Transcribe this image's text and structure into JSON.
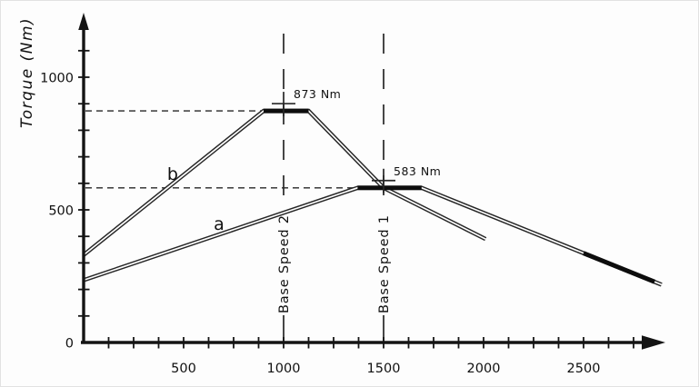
{
  "colors": {
    "background": "#fdfdfd",
    "line": "#262626",
    "axis": "#141414",
    "thick": "#0d0d0d",
    "text": "#111111"
  },
  "chart_data": {
    "type": "line",
    "title": "",
    "xlabel": "",
    "ylabel": "Torque (Nm)",
    "xlim": [
      0,
      2900
    ],
    "ylim": [
      0,
      1200
    ],
    "grid": false,
    "legend": "inline curve labels",
    "x_ticks_labeled": [
      500,
      1000,
      1500,
      2000,
      2500
    ],
    "x_minor_tick_step": 125,
    "y_ticks_labeled": [
      0,
      500,
      1000
    ],
    "y_minor_tick_step": 100,
    "series": [
      {
        "name": "a",
        "points": [
          [
            0,
            235
          ],
          [
            1370,
            583
          ],
          [
            1690,
            583
          ],
          [
            2890,
            218
          ]
        ],
        "thick_segments": [
          [
            1370,
            1690
          ],
          [
            2500,
            2855
          ]
        ]
      },
      {
        "name": "b",
        "points": [
          [
            0,
            330
          ],
          [
            900,
            873
          ],
          [
            1125,
            873
          ],
          [
            1500,
            583
          ],
          [
            2010,
            390
          ]
        ],
        "thick_segments": [
          [
            900,
            1125
          ]
        ]
      }
    ],
    "annotations": [
      {
        "text": "873 Nm",
        "x": 1000,
        "y": 873,
        "guide_to_x": 900
      },
      {
        "text": "583 Nm",
        "x": 1500,
        "y": 583,
        "guide_to_x": 1370
      }
    ],
    "base_speeds": [
      {
        "label": "Base Speed 2",
        "x": 1000
      },
      {
        "label": "Base Speed 1",
        "x": 1500
      }
    ],
    "curve_labels": [
      {
        "text": "a",
        "x": 677,
        "y": 425
      },
      {
        "text": "b",
        "x": 445,
        "y": 613
      }
    ]
  }
}
